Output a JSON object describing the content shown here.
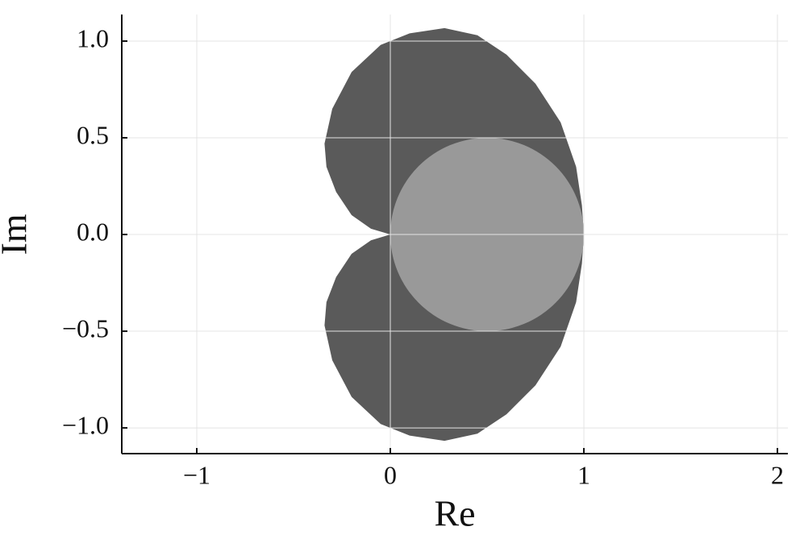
{
  "chart_data": {
    "type": "region",
    "x_label": "Re",
    "y_label": "Im",
    "xlim": [
      -1.3875,
      2.054
    ],
    "ylim": [
      -1.133,
      1.1375
    ],
    "xticks": [
      {
        "value": -1,
        "label": "−1"
      },
      0,
      1,
      2
    ],
    "yticks": [
      {
        "value": -1,
        "label": "−1.0"
      },
      {
        "value": -0.5,
        "label": "−0.5"
      },
      {
        "value": 0,
        "label": "0.0"
      },
      {
        "value": 0.5,
        "label": "0.5"
      },
      {
        "value": 1,
        "label": "1.0"
      }
    ],
    "grid": true,
    "series": [
      {
        "color": "#5a5a5a",
        "x": [
          0,
          -0.1,
          -0.2,
          -0.28,
          -0.33,
          -0.34,
          -0.3,
          -0.2,
          -0.05,
          0.1,
          0.28,
          0.45,
          0.6,
          0.75,
          0.88,
          0.96,
          0.99,
          1,
          0.99,
          0.96,
          0.88,
          0.75,
          0.6,
          0.45,
          0.28,
          0.1,
          -0.05,
          -0.2,
          -0.3,
          -0.34,
          -0.33,
          -0.28,
          -0.2,
          -0.1
        ],
        "y": [
          0,
          0.03,
          0.1,
          0.22,
          0.35,
          0.47,
          0.65,
          0.84,
          0.98,
          1.04,
          1.067,
          1.03,
          0.93,
          0.78,
          0.58,
          0.35,
          0.15,
          0,
          -0.15,
          -0.35,
          -0.58,
          -0.78,
          -0.93,
          -1.03,
          -1.067,
          -1.04,
          -0.98,
          -0.84,
          -0.65,
          -0.47,
          -0.35,
          -0.22,
          -0.1,
          -0.03
        ]
      },
      {
        "color": "#999999",
        "cx": 0.5,
        "cy": 0,
        "r": 0.5
      }
    ]
  }
}
